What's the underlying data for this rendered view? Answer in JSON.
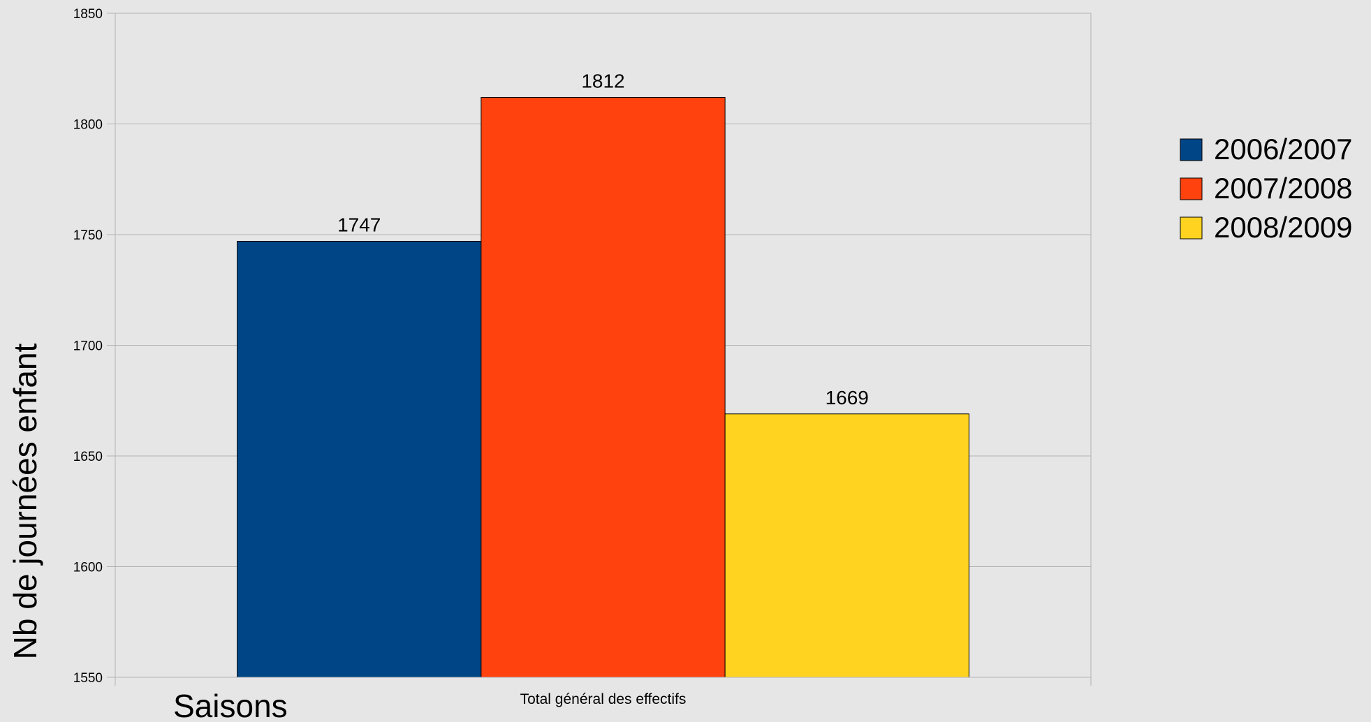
{
  "chart_data": {
    "type": "bar",
    "categories": [
      "Total général des effectifs"
    ],
    "series": [
      {
        "name": "2006/2007",
        "values": [
          1747
        ],
        "color": "#004586"
      },
      {
        "name": "2007/2008",
        "values": [
          1812
        ],
        "color": "#ff420e"
      },
      {
        "name": "2008/2009",
        "values": [
          1669
        ],
        "color": "#ffd320"
      }
    ],
    "ylabel": "Nb de journées enfant",
    "xlabel": "Saisons",
    "ylim": [
      1550,
      1850
    ],
    "yticks": [
      1550,
      1600,
      1650,
      1700,
      1750,
      1800,
      1850
    ],
    "grid": true,
    "legend_position": "right",
    "show_data_labels": true
  }
}
